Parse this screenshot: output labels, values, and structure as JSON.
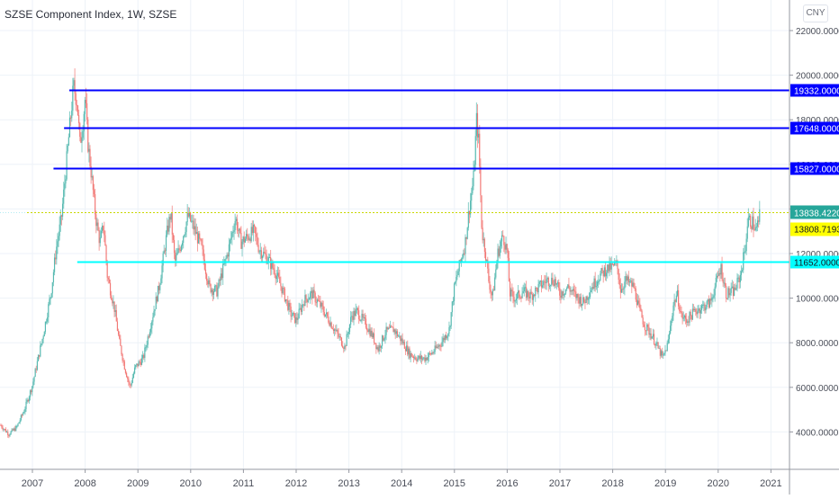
{
  "header": {
    "title": "SZSE Component Index, 1W, SZSE",
    "currency_label": "CNY"
  },
  "colors": {
    "up": "#26a69a",
    "down": "#ef5350",
    "grid": "#edf2f8",
    "axis": "#9598a1",
    "text": "#4a4e59",
    "level_blue": "#0000ff",
    "level_cyan": "#00ffff",
    "last_price_bg": "#26a69a",
    "yellow_level_bg": "#ffff00",
    "yellow_dash": "#c8d800"
  },
  "chart_data": {
    "type": "candlestick",
    "title": "SZSE Component Index, 1W, SZSE",
    "xlabel": "",
    "ylabel": "CNY",
    "ylim": [
      2500,
      23000
    ],
    "grid": true,
    "x_ticks": [
      "2007",
      "2008",
      "2009",
      "2010",
      "2011",
      "2012",
      "2013",
      "2014",
      "2015",
      "2016",
      "2017",
      "2018",
      "2019",
      "2020",
      "2021"
    ],
    "y_ticks": [
      "22000.0000",
      "20000.0000",
      "18000.0000",
      "16000.0000",
      "14000.0000",
      "12000.0000",
      "10000.0000",
      "8000.0000",
      "6000.0000",
      "4000.0000"
    ],
    "horizontal_levels": [
      {
        "label": "19332.0000",
        "value": 19332,
        "color": "#0000ff",
        "start_year": 2007.7
      },
      {
        "label": "17648.0000",
        "value": 17648,
        "color": "#0000ff",
        "start_year": 2007.6
      },
      {
        "label": "15827.0000",
        "value": 15827,
        "color": "#0000ff",
        "start_year": 2007.4
      },
      {
        "label": "11652.0000",
        "value": 11652,
        "color": "#00ffff",
        "start_year": 2007.85
      }
    ],
    "last_price": {
      "label": "13838.4220",
      "value": 13838.422,
      "color": "#26a69a"
    },
    "yellow_level": {
      "label": "13808.7193",
      "value": 13808.7193,
      "color": "#ffff00"
    },
    "price_path": [
      [
        2006.4,
        4300
      ],
      [
        2006.55,
        3900
      ],
      [
        2006.7,
        4200
      ],
      [
        2006.85,
        5000
      ],
      [
        2007.0,
        6100
      ],
      [
        2007.2,
        8300
      ],
      [
        2007.35,
        10200
      ],
      [
        2007.45,
        12200
      ],
      [
        2007.55,
        13600
      ],
      [
        2007.62,
        15400
      ],
      [
        2007.7,
        17500
      ],
      [
        2007.78,
        19500
      ],
      [
        2007.85,
        18800
      ],
      [
        2007.9,
        16900
      ],
      [
        2007.95,
        17700
      ],
      [
        2008.0,
        19000
      ],
      [
        2008.05,
        17000
      ],
      [
        2008.12,
        15500
      ],
      [
        2008.2,
        13600
      ],
      [
        2008.28,
        12500
      ],
      [
        2008.35,
        13300
      ],
      [
        2008.42,
        11000
      ],
      [
        2008.55,
        9600
      ],
      [
        2008.65,
        8000
      ],
      [
        2008.75,
        6900
      ],
      [
        2008.85,
        6000
      ],
      [
        2008.95,
        6900
      ],
      [
        2009.1,
        7300
      ],
      [
        2009.25,
        8900
      ],
      [
        2009.4,
        10500
      ],
      [
        2009.55,
        12900
      ],
      [
        2009.62,
        13800
      ],
      [
        2009.7,
        11600
      ],
      [
        2009.8,
        12300
      ],
      [
        2009.95,
        13700
      ],
      [
        2010.05,
        13200
      ],
      [
        2010.2,
        12300
      ],
      [
        2010.35,
        10500
      ],
      [
        2010.5,
        10300
      ],
      [
        2010.6,
        11200
      ],
      [
        2010.7,
        12000
      ],
      [
        2010.85,
        13600
      ],
      [
        2010.95,
        12500
      ],
      [
        2011.1,
        12800
      ],
      [
        2011.2,
        13000
      ],
      [
        2011.3,
        12200
      ],
      [
        2011.45,
        11800
      ],
      [
        2011.6,
        11200
      ],
      [
        2011.75,
        10300
      ],
      [
        2011.9,
        9300
      ],
      [
        2012.0,
        9000
      ],
      [
        2012.15,
        9900
      ],
      [
        2012.3,
        10200
      ],
      [
        2012.45,
        9700
      ],
      [
        2012.6,
        9100
      ],
      [
        2012.75,
        8500
      ],
      [
        2012.92,
        7800
      ],
      [
        2013.05,
        9200
      ],
      [
        2013.15,
        9400
      ],
      [
        2013.3,
        8900
      ],
      [
        2013.45,
        8300
      ],
      [
        2013.55,
        7700
      ],
      [
        2013.7,
        8500
      ],
      [
        2013.85,
        8600
      ],
      [
        2014.0,
        8100
      ],
      [
        2014.15,
        7500
      ],
      [
        2014.3,
        7300
      ],
      [
        2014.45,
        7300
      ],
      [
        2014.6,
        7600
      ],
      [
        2014.75,
        8000
      ],
      [
        2014.9,
        8600
      ],
      [
        2015.0,
        10500
      ],
      [
        2015.1,
        11500
      ],
      [
        2015.2,
        12400
      ],
      [
        2015.28,
        14000
      ],
      [
        2015.36,
        15300
      ],
      [
        2015.42,
        18000
      ],
      [
        2015.46,
        17000
      ],
      [
        2015.52,
        13000
      ],
      [
        2015.58,
        12200
      ],
      [
        2015.65,
        10800
      ],
      [
        2015.72,
        10000
      ],
      [
        2015.82,
        12000
      ],
      [
        2015.92,
        12800
      ],
      [
        2016.0,
        12100
      ],
      [
        2016.05,
        10200
      ],
      [
        2016.15,
        10000
      ],
      [
        2016.3,
        10300
      ],
      [
        2016.45,
        10100
      ],
      [
        2016.6,
        10500
      ],
      [
        2016.75,
        10800
      ],
      [
        2016.9,
        10800
      ],
      [
        2017.0,
        10200
      ],
      [
        2017.15,
        10500
      ],
      [
        2017.3,
        10100
      ],
      [
        2017.45,
        9800
      ],
      [
        2017.6,
        10500
      ],
      [
        2017.75,
        11000
      ],
      [
        2017.88,
        11300
      ],
      [
        2018.0,
        11400
      ],
      [
        2018.08,
        11500
      ],
      [
        2018.15,
        10400
      ],
      [
        2018.25,
        10800
      ],
      [
        2018.4,
        10500
      ],
      [
        2018.5,
        9500
      ],
      [
        2018.6,
        8800
      ],
      [
        2018.75,
        8300
      ],
      [
        2018.85,
        7800
      ],
      [
        2018.95,
        7300
      ],
      [
        2019.05,
        8000
      ],
      [
        2019.15,
        9700
      ],
      [
        2019.22,
        10200
      ],
      [
        2019.3,
        9200
      ],
      [
        2019.4,
        9000
      ],
      [
        2019.55,
        9400
      ],
      [
        2019.7,
        9600
      ],
      [
        2019.85,
        9800
      ],
      [
        2019.95,
        10600
      ],
      [
        2020.05,
        11400
      ],
      [
        2020.15,
        10200
      ],
      [
        2020.3,
        10300
      ],
      [
        2020.42,
        11000
      ],
      [
        2020.52,
        12400
      ],
      [
        2020.56,
        13500
      ],
      [
        2020.65,
        13400
      ],
      [
        2020.72,
        13000
      ],
      [
        2020.8,
        13838
      ]
    ]
  }
}
